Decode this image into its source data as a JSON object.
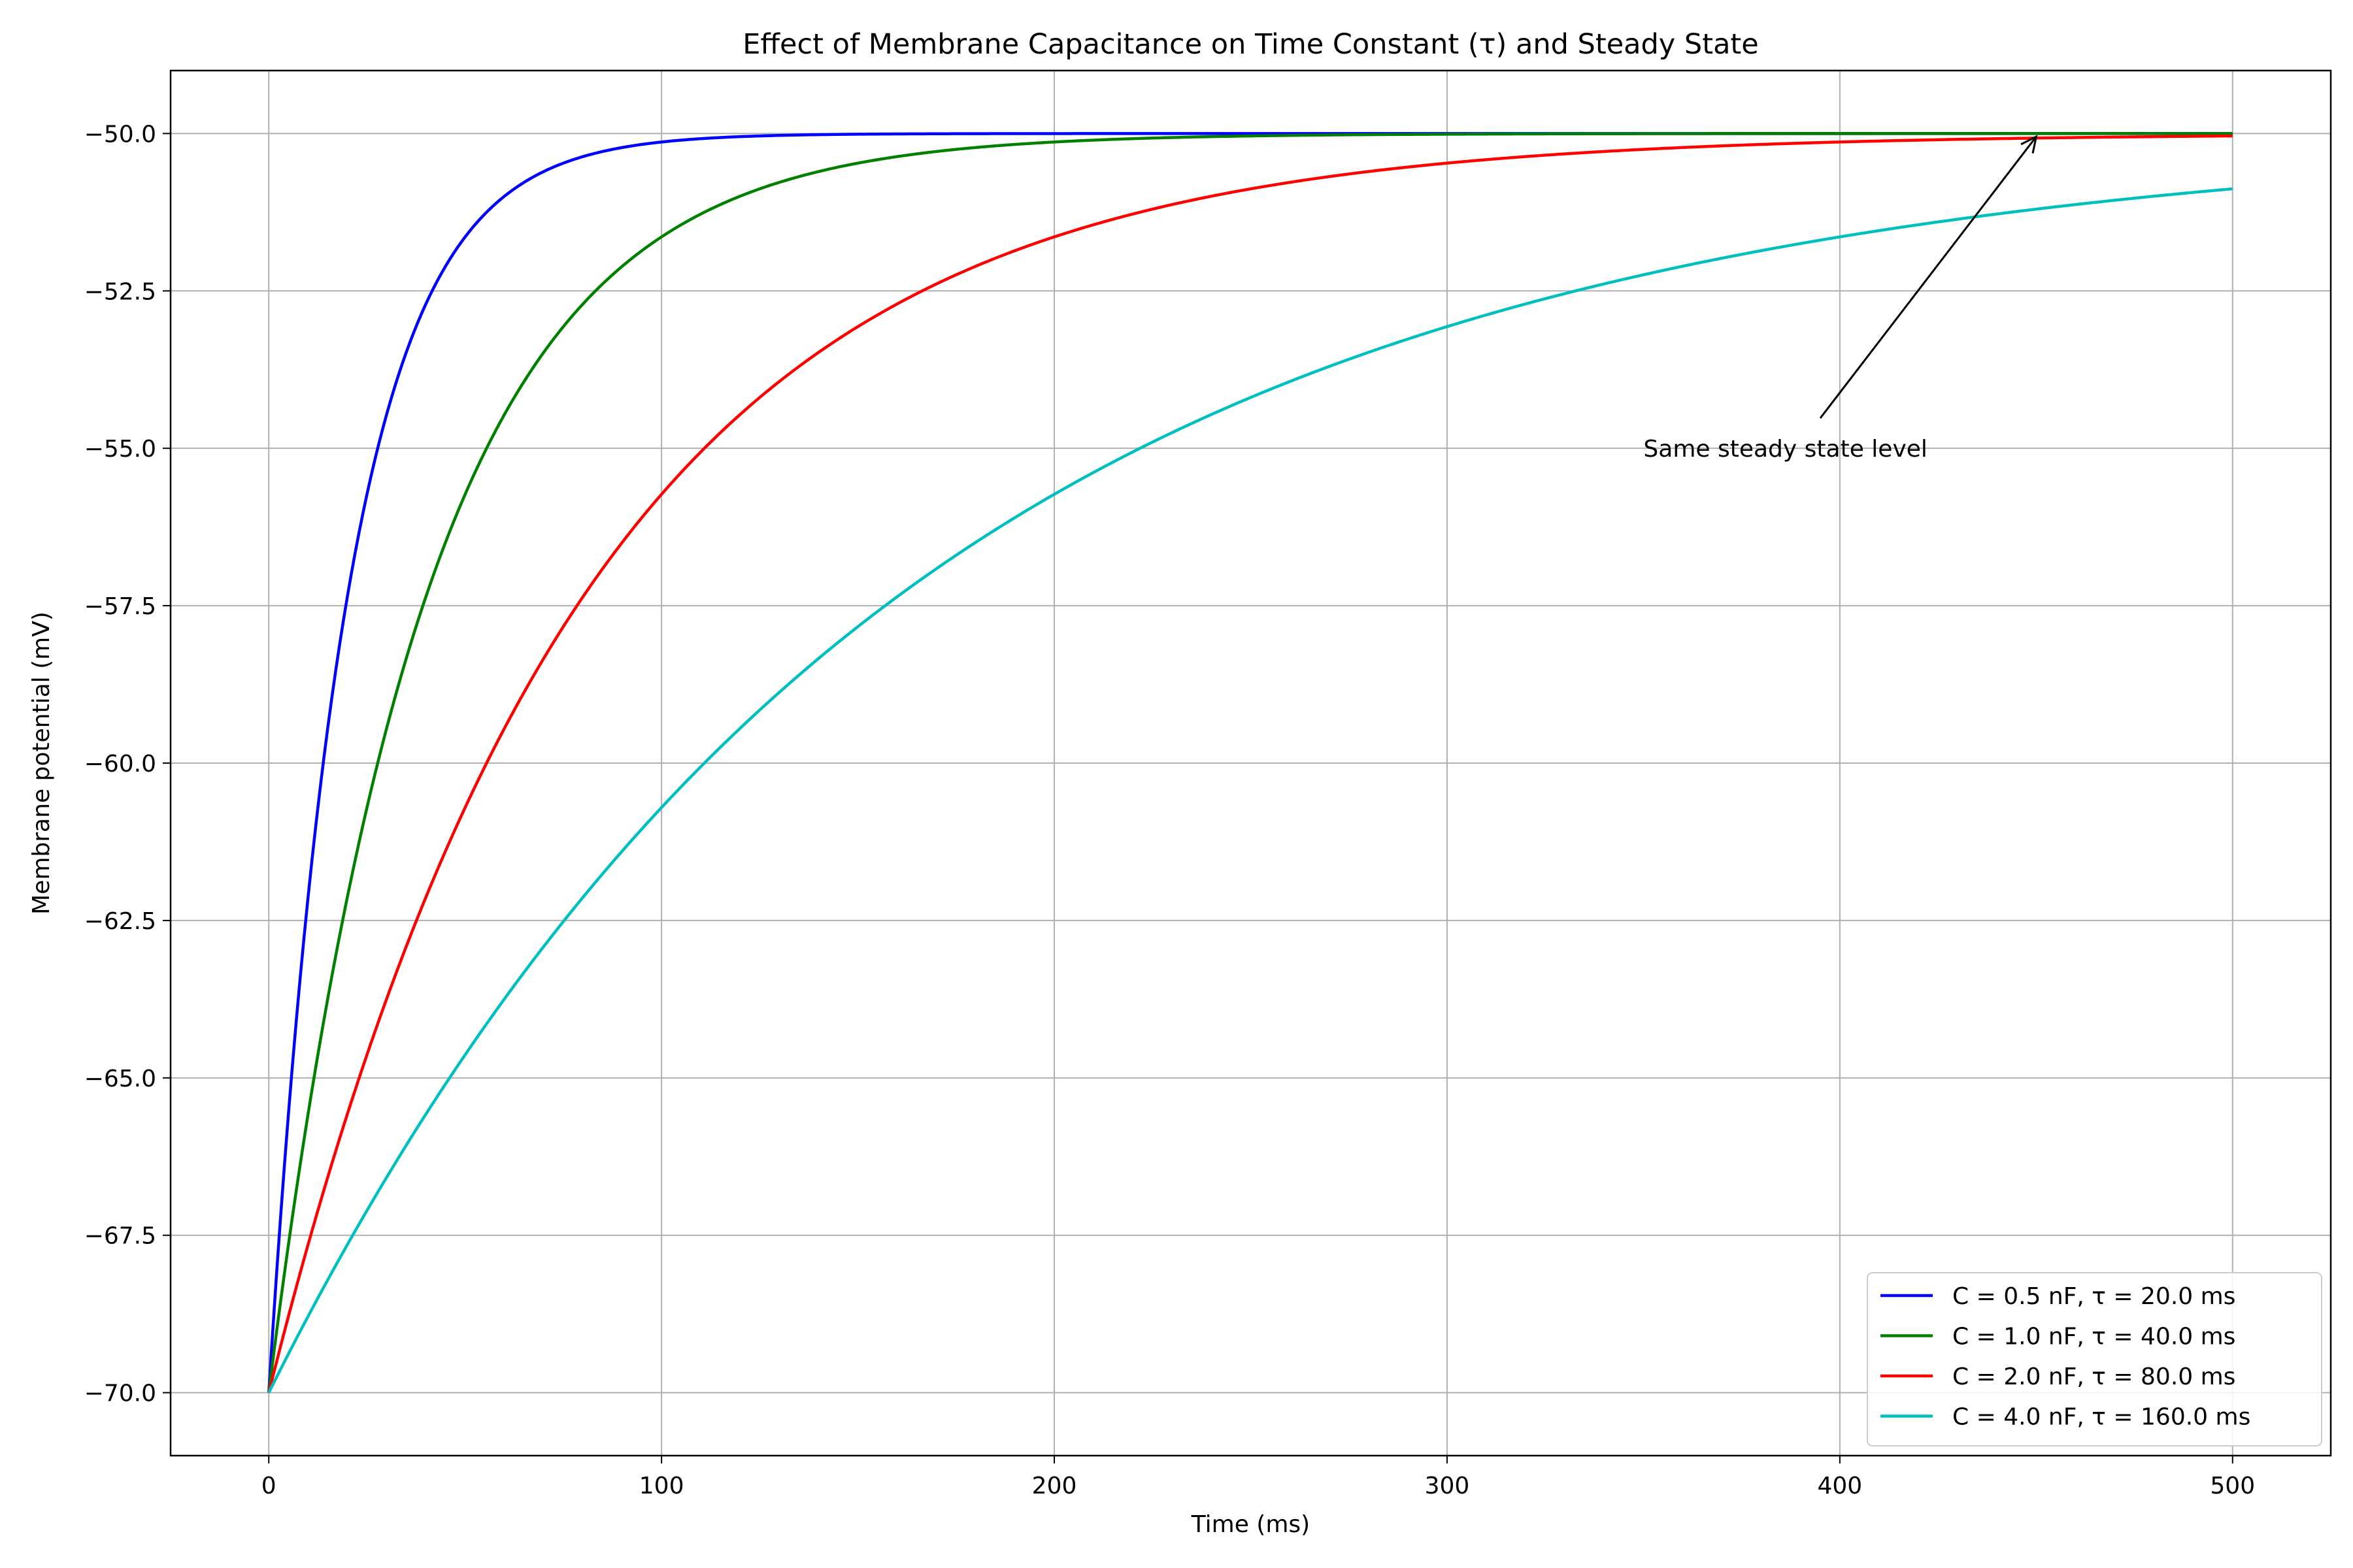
{
  "chart_data": {
    "type": "line",
    "title": "Effect of Membrane Capacitance on Time Constant (τ) and Steady State",
    "xlabel": "Time (ms)",
    "ylabel": "Membrane potential (mV)",
    "xlim": [
      -25,
      525
    ],
    "ylim": [
      -71,
      -49
    ],
    "xticks": [
      0,
      100,
      200,
      300,
      400,
      500
    ],
    "yticks": [
      -70.0,
      -67.5,
      -65.0,
      -62.5,
      -60.0,
      -57.5,
      -55.0,
      -52.5,
      -50.0
    ],
    "grid": true,
    "legend_position": "lower-right",
    "v_start": -70,
    "v_steady": -50,
    "t_end": 500,
    "series": [
      {
        "name": "C = 0.5 nF, τ = 20.0 ms",
        "tau": 20,
        "color": "#0000ff"
      },
      {
        "name": "C = 1.0 nF, τ = 40.0 ms",
        "tau": 40,
        "color": "#008000"
      },
      {
        "name": "C = 2.0 nF, τ = 80.0 ms",
        "tau": 80,
        "color": "#ff0000"
      },
      {
        "name": "C = 4.0 nF, τ = 160.0 ms",
        "tau": 160,
        "color": "#00bfbf"
      }
    ],
    "annotation": {
      "text": "Same steady state level",
      "point": [
        450,
        -50.05
      ],
      "text_at": [
        350,
        -55
      ]
    }
  }
}
